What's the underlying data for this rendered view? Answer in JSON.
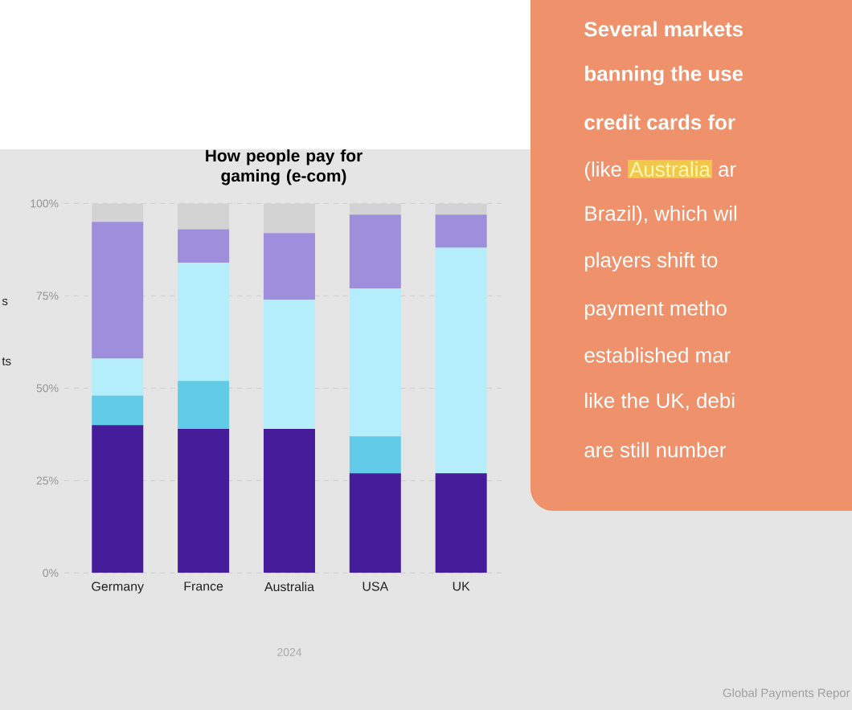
{
  "chart_data": {
    "type": "bar",
    "stacked": true,
    "title": "How people pay for gaming (e-com)",
    "categories": [
      "Germany",
      "France",
      "Australia",
      "USA",
      "UK"
    ],
    "series": [
      {
        "color": "#451c9a",
        "values": [
          40,
          39,
          39,
          27,
          27
        ]
      },
      {
        "color": "#62cbe8",
        "values": [
          8,
          13,
          0,
          10,
          0
        ]
      },
      {
        "color": "#b4eefa",
        "values": [
          10,
          32,
          35,
          40,
          61
        ]
      },
      {
        "color": "#9d8fdc",
        "values": [
          37,
          9,
          18,
          20,
          9
        ]
      },
      {
        "color": "#d3d3d3",
        "values": [
          5,
          7,
          8,
          3,
          3
        ]
      }
    ],
    "ylim": [
      0,
      100
    ],
    "yticks": [
      {
        "value": 0,
        "label": "0%"
      },
      {
        "value": 25,
        "label": "25%"
      },
      {
        "value": 50,
        "label": "50%"
      },
      {
        "value": 75,
        "label": "75%"
      },
      {
        "value": 100,
        "label": "100%"
      }
    ],
    "grid": "y",
    "annotations": [
      "2024",
      "s",
      "ts",
      "Several markets",
      "banning the use",
      "credit cards for",
      "(like",
      "Australia",
      "ar",
      "Brazil), which wil",
      "players shift to",
      "payment metho",
      "established mar",
      "like the UK, debi",
      "are still number",
      "Global Payments Repor"
    ]
  }
}
